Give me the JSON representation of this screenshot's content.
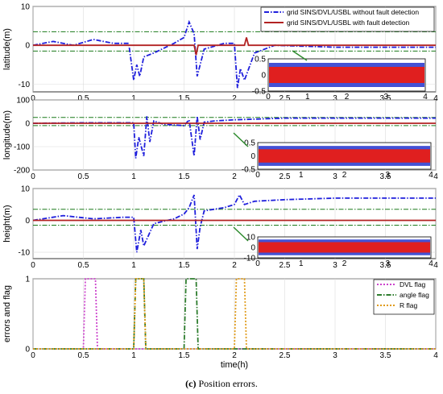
{
  "caption": {
    "tag": "(c)",
    "text": "Position errors."
  },
  "chart_data": [
    {
      "type": "line",
      "ylabel": "latitude(m)",
      "xlim": [
        0,
        4
      ],
      "ylim": [
        -12,
        10
      ],
      "xticks": [
        "0",
        "0.5",
        "1",
        "1.5",
        "2",
        "2.5",
        "3",
        "3.5",
        "4"
      ],
      "yticks": [
        "-10",
        "0",
        "10"
      ],
      "grid": true,
      "legend": {
        "placement": "top-right",
        "entries": [
          "grid SINS/DVL/USBL without fault detection",
          "grid SINS/DVL/USBL with fault detection"
        ]
      },
      "series": [
        {
          "name": "grid SINS/DVL/USBL without fault detection",
          "color": "#1f1fdc",
          "dash": "dashdot",
          "x": [
            0,
            0.2,
            0.4,
            0.6,
            0.8,
            0.95,
            1.0,
            1.03,
            1.06,
            1.1,
            1.2,
            1.4,
            1.5,
            1.55,
            1.6,
            1.63,
            1.7,
            1.9,
            2.0,
            2.03,
            2.06,
            2.1,
            2.2,
            2.4,
            3.0,
            4.0
          ],
          "y": [
            0,
            1,
            0,
            1.5,
            0.5,
            0.5,
            -9,
            -5,
            -8,
            -3,
            -2,
            0.5,
            2,
            6,
            3,
            -8,
            -1,
            0.5,
            0.5,
            -11,
            -6,
            -9,
            -2,
            0,
            -0.5,
            -0.5
          ]
        },
        {
          "name": "grid SINS/DVL/USBL with fault detection",
          "color": "#b22222",
          "dash": "solid",
          "x": [
            0,
            1.0,
            1.6,
            1.62,
            1.64,
            2.1,
            2.12,
            2.14,
            4.0
          ],
          "y": [
            0,
            0,
            0,
            -2.5,
            0,
            0,
            2,
            0,
            0
          ]
        }
      ],
      "threshold_lines": {
        "color": "#1a7a1a",
        "values": [
          3.5,
          -1.5
        ]
      },
      "inset": {
        "xlim": [
          0,
          4
        ],
        "ylim": [
          -0.5,
          0.5
        ],
        "xticks": [
          "0",
          "1",
          "2",
          "3",
          "4"
        ],
        "yticks": [
          "-0.5",
          "0",
          "0.5"
        ]
      }
    },
    {
      "type": "line",
      "ylabel": "longitude(m)",
      "xlim": [
        0,
        4
      ],
      "ylim": [
        -200,
        100
      ],
      "xticks": [
        "0",
        "0.5",
        "1",
        "1.5",
        "2",
        "2.5",
        "3",
        "3.5",
        "4"
      ],
      "yticks": [
        "-200",
        "-100",
        "0",
        "100"
      ],
      "grid": true,
      "series": [
        {
          "name": "grid SINS/DVL/USBL without fault detection",
          "color": "#1f1fdc",
          "dash": "dashdot",
          "x": [
            0,
            0.5,
            1.0,
            1.02,
            1.05,
            1.1,
            1.13,
            1.16,
            1.2,
            1.3,
            1.5,
            1.55,
            1.6,
            1.63,
            1.66,
            1.7,
            1.8,
            2.0,
            2.5,
            3.0,
            4.0
          ],
          "y": [
            0,
            2,
            2,
            -150,
            -60,
            -140,
            30,
            -80,
            10,
            -5,
            -10,
            15,
            -140,
            30,
            -70,
            5,
            10,
            15,
            22,
            22,
            22
          ]
        },
        {
          "name": "grid SINS/DVL/USBL with fault detection",
          "color": "#b22222",
          "dash": "solid",
          "x": [
            0,
            1.0,
            2.0,
            4.0
          ],
          "y": [
            0,
            0,
            0,
            0
          ]
        }
      ],
      "threshold_lines": {
        "color": "#1a7a1a",
        "values": [
          25,
          -10
        ]
      },
      "inset": {
        "xlim": [
          0,
          4
        ],
        "ylim": [
          -0.5,
          0.5
        ],
        "xticks": [
          "0",
          "1",
          "2",
          "3",
          "4"
        ],
        "yticks": [
          "-0.5",
          "0",
          "0.5"
        ]
      }
    },
    {
      "type": "line",
      "ylabel": "height(m)",
      "xlim": [
        0,
        4
      ],
      "ylim": [
        -12,
        10
      ],
      "xticks": [
        "0",
        "0.5",
        "1",
        "1.5",
        "2",
        "2.5",
        "3",
        "3.5",
        "4"
      ],
      "yticks": [
        "-10",
        "0",
        "10"
      ],
      "grid": true,
      "series": [
        {
          "name": "grid SINS/DVL/USBL without fault detection",
          "color": "#1f1fdc",
          "dash": "dashdot",
          "x": [
            0,
            0.3,
            0.6,
            0.9,
            1.0,
            1.03,
            1.07,
            1.1,
            1.2,
            1.4,
            1.5,
            1.55,
            1.6,
            1.63,
            1.66,
            1.7,
            1.9,
            2.0,
            2.05,
            2.1,
            2.2,
            2.5,
            3.0,
            3.5,
            4.0
          ],
          "y": [
            0,
            1.5,
            0.5,
            1,
            1,
            -10,
            -3,
            -8,
            -1,
            0.5,
            2,
            4,
            8,
            -9,
            -2,
            3,
            4,
            5,
            8,
            5,
            6,
            6.5,
            7,
            7,
            7
          ]
        },
        {
          "name": "grid SINS/DVL/USBL with fault detection",
          "color": "#b22222",
          "dash": "solid",
          "x": [
            0,
            4.0
          ],
          "y": [
            0,
            0
          ]
        }
      ],
      "threshold_lines": {
        "color": "#1a7a1a",
        "values": [
          3.5,
          -1.5
        ]
      },
      "inset": {
        "xlim": [
          0,
          4
        ],
        "ylim": [
          -10,
          10
        ],
        "xticks": [
          "0",
          "1",
          "2",
          "3",
          "4"
        ],
        "yticks": [
          "-10",
          "0",
          "10"
        ]
      }
    },
    {
      "type": "line",
      "xlabel": "time(h)",
      "ylabel": "errors and flag",
      "xlim": [
        0,
        4
      ],
      "ylim": [
        0,
        1
      ],
      "xticks": [
        "0",
        "0.5",
        "1",
        "1.5",
        "2",
        "2.5",
        "3",
        "3.5",
        "4"
      ],
      "yticks": [
        "0",
        "1"
      ],
      "grid": true,
      "legend": {
        "placement": "top-right",
        "entries": [
          "DVL flag",
          "angle flag",
          "R flag"
        ]
      },
      "series": [
        {
          "name": "DVL flag",
          "color": "#cc44cc",
          "dash": "dotted",
          "x": [
            0,
            0.5,
            0.52,
            0.62,
            0.64,
            4
          ],
          "y": [
            0,
            0,
            1,
            1,
            0,
            0
          ]
        },
        {
          "name": "angle flag",
          "color": "#2e7d2e",
          "dash": "dashdot",
          "x": [
            0,
            1.0,
            1.02,
            1.1,
            1.12,
            1.5,
            1.52,
            1.62,
            1.64,
            4
          ],
          "y": [
            0,
            0,
            1,
            1,
            0,
            0,
            1,
            1,
            0,
            0
          ]
        },
        {
          "name": "R flag",
          "color": "#e09b1a",
          "dash": "dotted",
          "x": [
            0,
            1.0,
            1.02,
            1.1,
            1.12,
            2.0,
            2.02,
            2.1,
            2.12,
            4
          ],
          "y": [
            0,
            0,
            1,
            1,
            0,
            0,
            1,
            1,
            0,
            0
          ]
        }
      ]
    }
  ]
}
